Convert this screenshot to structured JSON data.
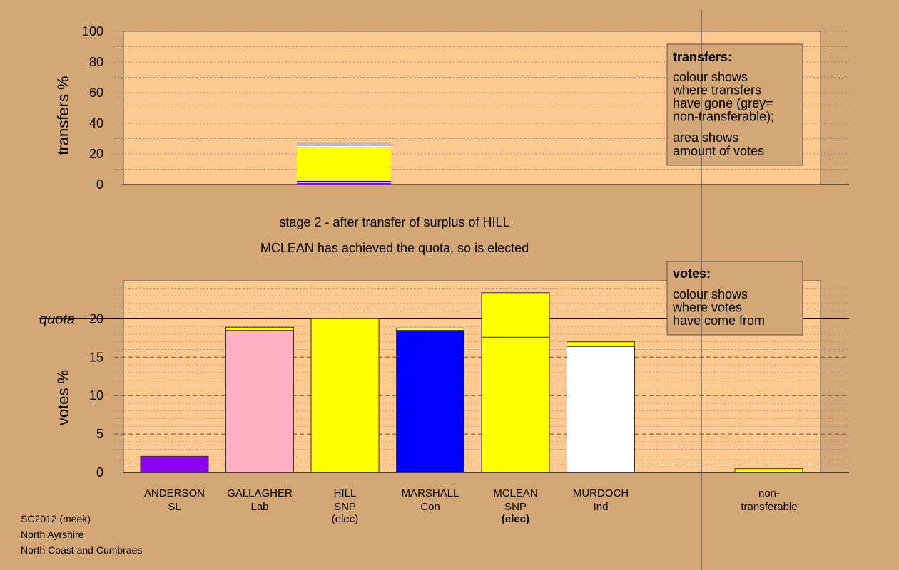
{
  "colors": {
    "background": "#d4a876",
    "panel": "#fec98f",
    "legend_box": "#d4a876",
    "SNP": "#ffff00",
    "Lab": "#ffb0c4",
    "Con": "#0000ff",
    "SL": "#8a00f0",
    "Ind": "#ffffff",
    "non_transferable": "#bcbcbc"
  },
  "titles": {
    "stage": "stage 2 - after transfer of surplus of HILL",
    "status": "MCLEAN has achieved the quota, so is elected"
  },
  "legend_transfers": {
    "title": "transfers:",
    "lines1": [
      "colour shows",
      "where transfers",
      "have gone (grey=",
      "non-transferable);"
    ],
    "lines2": [
      "area shows",
      "amount of votes"
    ]
  },
  "legend_votes": {
    "title": "votes:",
    "lines": [
      "colour shows",
      "where votes",
      "have come from"
    ]
  },
  "footer": {
    "line1": "SC2012 (meek)",
    "line2": "North Ayrshire",
    "line3": "North Coast and Cumbraes"
  },
  "chart_data": [
    {
      "type": "bar",
      "stacked": true,
      "title": "",
      "ylabel": "transfers %",
      "ylim": [
        0,
        100
      ],
      "yticks": [
        0,
        20,
        40,
        60,
        80,
        100
      ],
      "grid": true,
      "legend_position": "top-right",
      "bar": {
        "category": "HILL",
        "segments": [
          {
            "party": "SL",
            "value": 1.0
          },
          {
            "party": "Lab",
            "value": 0.8
          },
          {
            "party": "Con",
            "value": 0.6
          },
          {
            "party": "SNP",
            "value": 21.8
          },
          {
            "party": "Ind",
            "value": 0.9
          },
          {
            "party": "non_transferable",
            "value": 2.2
          }
        ]
      }
    },
    {
      "type": "bar",
      "stacked": true,
      "title": "",
      "ylabel": "votes %",
      "ylim": [
        0,
        24
      ],
      "yticks": [
        0,
        5,
        10,
        15,
        20
      ],
      "quota": 20,
      "quota_label": "quota",
      "grid": true,
      "legend_position": "top-right",
      "categories": [
        {
          "name": "ANDERSON",
          "party": "SL",
          "elec": "",
          "bold_elec": false,
          "segments": [
            {
              "party": "SL",
              "value": 2.1
            }
          ]
        },
        {
          "name": "GALLAGHER",
          "party": "Lab",
          "elec": "",
          "bold_elec": false,
          "segments": [
            {
              "party": "Lab",
              "value": 18.5
            },
            {
              "party": "SNP",
              "value": 0.4
            }
          ]
        },
        {
          "name": "HILL",
          "party": "SNP",
          "elec": "(elec)",
          "bold_elec": false,
          "segments": [
            {
              "party": "SNP",
              "value": 20.0
            }
          ]
        },
        {
          "name": "MARSHALL",
          "party": "Con",
          "elec": "",
          "bold_elec": false,
          "segments": [
            {
              "party": "Con",
              "value": 18.5
            },
            {
              "party": "SNP",
              "value": 0.3
            }
          ]
        },
        {
          "name": "MCLEAN",
          "party": "SNP",
          "elec": "(elec)",
          "bold_elec": true,
          "segments": [
            {
              "party": "SNP",
              "value": 17.6
            },
            {
              "party": "SNP",
              "value": 5.8
            }
          ]
        },
        {
          "name": "MURDOCH",
          "party": "Ind",
          "elec": "",
          "bold_elec": false,
          "segments": [
            {
              "party": "Ind",
              "value": 16.4
            },
            {
              "party": "SNP",
              "value": 0.6
            }
          ]
        }
      ],
      "non_transferable": {
        "label1": "non-",
        "label2": "transferable",
        "segments": [
          {
            "party": "SNP",
            "value": 0.5
          }
        ]
      }
    }
  ]
}
